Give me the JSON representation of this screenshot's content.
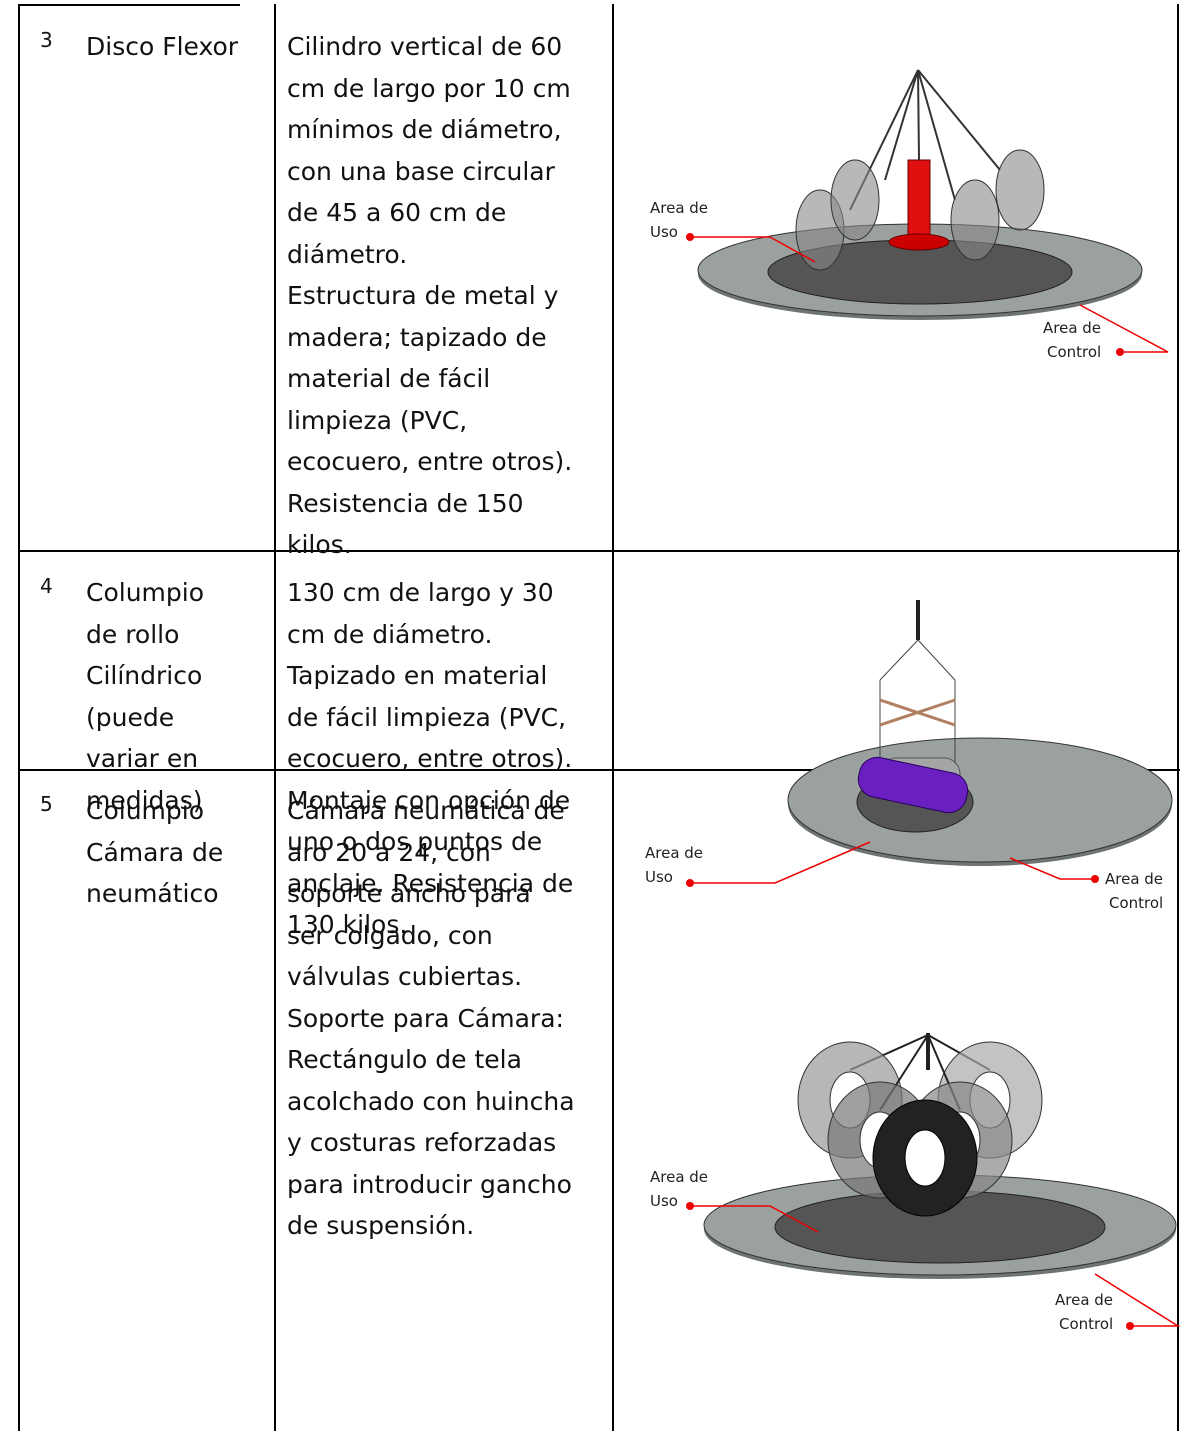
{
  "rows": [
    {
      "number": "3",
      "name": [
        "Disco Flexor"
      ],
      "description": [
        "Cilindro vertical de 60",
        "cm de largo por 10 cm",
        "mínimos de diámetro,",
        "con una base circular",
        "de 45 a 60 cm de",
        "diámetro.",
        "Estructura de metal y",
        "madera; tapizado de",
        "material de fácil",
        "limpieza (PVC,",
        "ecocuero, entre otros).",
        "Resistencia de 150",
        "kilos."
      ],
      "figure": {
        "use_label": [
          "Area de",
          "Uso"
        ],
        "control_label": [
          "Area de",
          "Control"
        ]
      }
    },
    {
      "number": "4",
      "name": [
        "Columpio",
        "de rollo",
        "Cilíndrico",
        "(puede",
        "variar en",
        "medidas)"
      ],
      "description": [
        "130 cm de largo y 30",
        "cm de diámetro.",
        "Tapizado en material",
        "de fácil limpieza (PVC,",
        "ecocuero, entre otros).",
        "Montaje con opción de",
        "uno o dos puntos de",
        "anclaje. Resistencia de",
        "130 kilos."
      ],
      "figure": {
        "use_label": [
          "Area de",
          "Uso"
        ],
        "control_label": [
          "Area de",
          "Control"
        ]
      }
    },
    {
      "number": "5",
      "name": [
        "Columpio",
        "Cámara de",
        "neumático"
      ],
      "description": [
        "Cámara neumática de",
        "aro 20 a 24, con",
        "soporte ancho para",
        "ser colgado, con",
        "válvulas cubiertas.",
        "Soporte para Cámara:",
        "Rectángulo de tela",
        "acolchado con huincha",
        "y costuras reforzadas",
        "para introducir gancho",
        "de suspensión."
      ],
      "figure": {
        "use_label": [
          "Area de",
          "Uso"
        ],
        "control_label": [
          "Area de",
          "Control"
        ]
      }
    }
  ]
}
